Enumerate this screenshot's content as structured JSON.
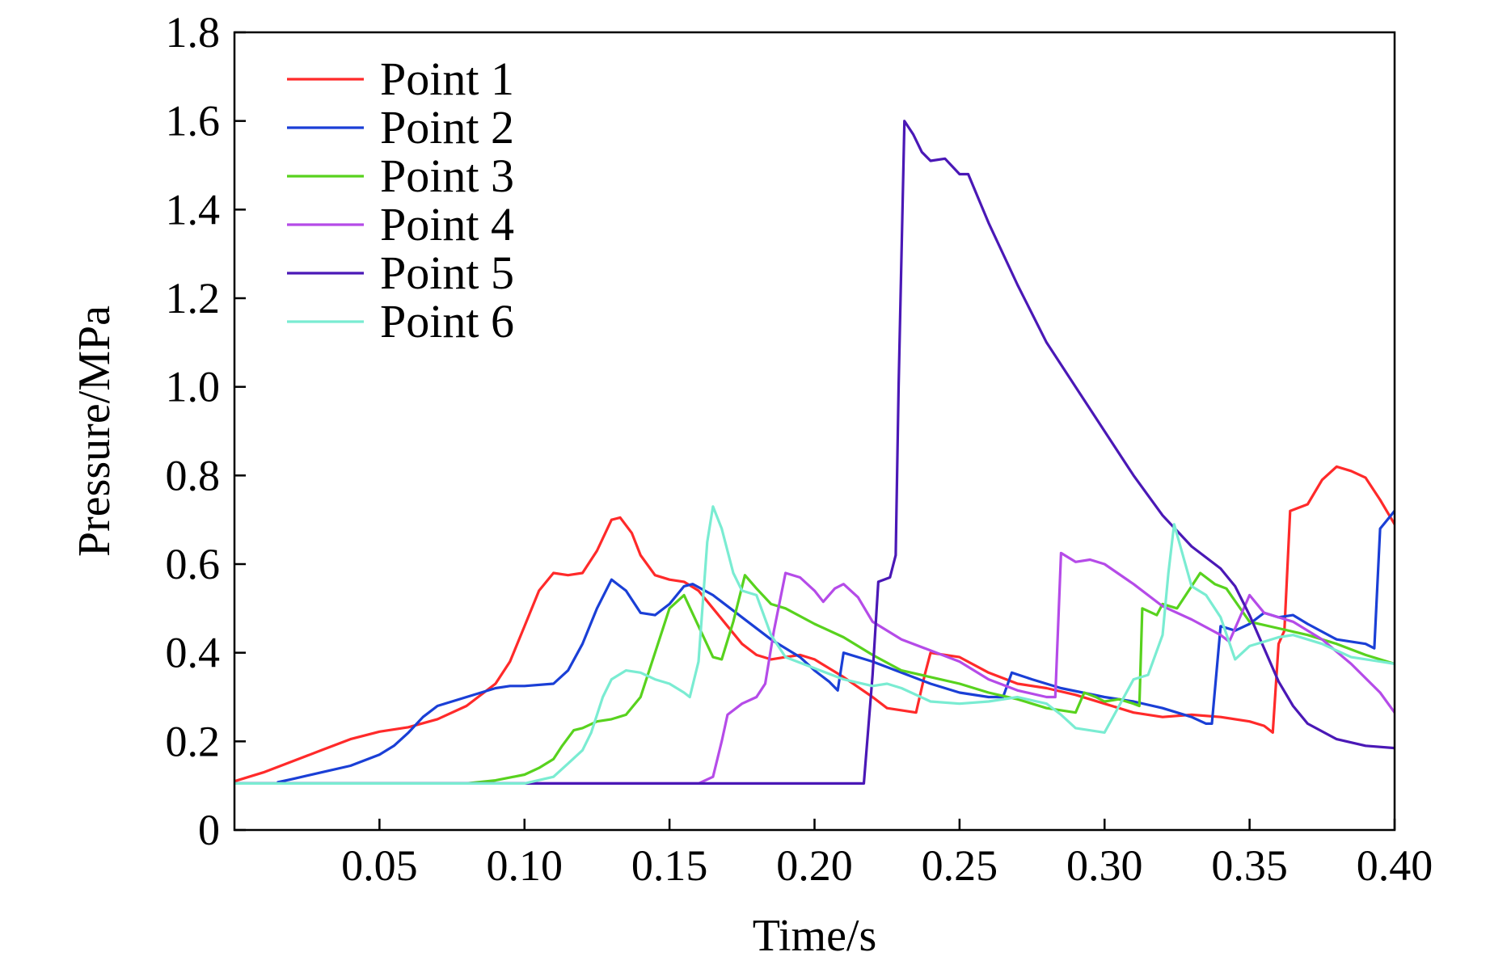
{
  "chart_data": {
    "type": "line",
    "title": "",
    "xlabel": "Time/s",
    "ylabel": "Pressure/MPa",
    "xlim": [
      0,
      0.4
    ],
    "ylim": [
      0,
      1.8
    ],
    "xticks": [
      0.05,
      0.1,
      0.15,
      0.2,
      0.25,
      0.3,
      0.35,
      0.4
    ],
    "xtick_labels": [
      "0.05",
      "0.10",
      "0.15",
      "0.20",
      "0.25",
      "0.30",
      "0.35",
      "0.40"
    ],
    "yticks": [
      0,
      0.2,
      0.4,
      0.6,
      0.8,
      1.0,
      1.2,
      1.4,
      1.6,
      1.8
    ],
    "ytick_labels": [
      "0",
      "0.2",
      "0.4",
      "0.6",
      "0.8",
      "1.0",
      "1.2",
      "1.4",
      "1.6",
      "1.8"
    ],
    "grid": false,
    "legend_position": "top-left",
    "series": [
      {
        "name": "Point 1",
        "color": "#ff2a2a",
        "points": [
          [
            0,
            0.11
          ],
          [
            0.01,
            0.13
          ],
          [
            0.02,
            0.155
          ],
          [
            0.03,
            0.18
          ],
          [
            0.04,
            0.205
          ],
          [
            0.05,
            0.222
          ],
          [
            0.06,
            0.232
          ],
          [
            0.07,
            0.25
          ],
          [
            0.08,
            0.28
          ],
          [
            0.09,
            0.33
          ],
          [
            0.095,
            0.38
          ],
          [
            0.1,
            0.46
          ],
          [
            0.105,
            0.54
          ],
          [
            0.11,
            0.58
          ],
          [
            0.115,
            0.575
          ],
          [
            0.12,
            0.58
          ],
          [
            0.125,
            0.63
          ],
          [
            0.13,
            0.7
          ],
          [
            0.133,
            0.705
          ],
          [
            0.137,
            0.67
          ],
          [
            0.14,
            0.62
          ],
          [
            0.145,
            0.575
          ],
          [
            0.15,
            0.565
          ],
          [
            0.155,
            0.56
          ],
          [
            0.16,
            0.54
          ],
          [
            0.165,
            0.5
          ],
          [
            0.17,
            0.46
          ],
          [
            0.175,
            0.42
          ],
          [
            0.18,
            0.395
          ],
          [
            0.185,
            0.385
          ],
          [
            0.19,
            0.39
          ],
          [
            0.195,
            0.395
          ],
          [
            0.2,
            0.385
          ],
          [
            0.21,
            0.345
          ],
          [
            0.22,
            0.3
          ],
          [
            0.225,
            0.275
          ],
          [
            0.235,
            0.265
          ],
          [
            0.238,
            0.35
          ],
          [
            0.24,
            0.4
          ],
          [
            0.25,
            0.39
          ],
          [
            0.26,
            0.355
          ],
          [
            0.27,
            0.33
          ],
          [
            0.28,
            0.32
          ],
          [
            0.29,
            0.305
          ],
          [
            0.3,
            0.285
          ],
          [
            0.31,
            0.265
          ],
          [
            0.32,
            0.255
          ],
          [
            0.33,
            0.26
          ],
          [
            0.34,
            0.255
          ],
          [
            0.35,
            0.245
          ],
          [
            0.355,
            0.235
          ],
          [
            0.358,
            0.22
          ],
          [
            0.36,
            0.42
          ],
          [
            0.362,
            0.45
          ],
          [
            0.364,
            0.72
          ],
          [
            0.37,
            0.735
          ],
          [
            0.375,
            0.79
          ],
          [
            0.38,
            0.82
          ],
          [
            0.385,
            0.81
          ],
          [
            0.39,
            0.795
          ],
          [
            0.395,
            0.745
          ],
          [
            0.4,
            0.69
          ]
        ]
      },
      {
        "name": "Point 2",
        "color": "#1a3fd6",
        "points": [
          [
            0.015,
            0.108
          ],
          [
            0.02,
            0.115
          ],
          [
            0.03,
            0.13
          ],
          [
            0.04,
            0.145
          ],
          [
            0.05,
            0.17
          ],
          [
            0.055,
            0.19
          ],
          [
            0.06,
            0.22
          ],
          [
            0.065,
            0.255
          ],
          [
            0.07,
            0.28
          ],
          [
            0.08,
            0.3
          ],
          [
            0.09,
            0.32
          ],
          [
            0.095,
            0.325
          ],
          [
            0.1,
            0.325
          ],
          [
            0.11,
            0.33
          ],
          [
            0.115,
            0.36
          ],
          [
            0.12,
            0.42
          ],
          [
            0.125,
            0.5
          ],
          [
            0.13,
            0.565
          ],
          [
            0.135,
            0.54
          ],
          [
            0.14,
            0.49
          ],
          [
            0.145,
            0.485
          ],
          [
            0.15,
            0.51
          ],
          [
            0.155,
            0.55
          ],
          [
            0.158,
            0.555
          ],
          [
            0.165,
            0.53
          ],
          [
            0.175,
            0.48
          ],
          [
            0.185,
            0.43
          ],
          [
            0.195,
            0.39
          ],
          [
            0.2,
            0.36
          ],
          [
            0.205,
            0.335
          ],
          [
            0.208,
            0.315
          ],
          [
            0.21,
            0.4
          ],
          [
            0.215,
            0.39
          ],
          [
            0.22,
            0.38
          ],
          [
            0.23,
            0.355
          ],
          [
            0.24,
            0.33
          ],
          [
            0.25,
            0.31
          ],
          [
            0.26,
            0.3
          ],
          [
            0.265,
            0.3
          ],
          [
            0.268,
            0.355
          ],
          [
            0.275,
            0.34
          ],
          [
            0.285,
            0.32
          ],
          [
            0.3,
            0.3
          ],
          [
            0.31,
            0.29
          ],
          [
            0.32,
            0.275
          ],
          [
            0.33,
            0.255
          ],
          [
            0.335,
            0.24
          ],
          [
            0.337,
            0.24
          ],
          [
            0.34,
            0.46
          ],
          [
            0.345,
            0.45
          ],
          [
            0.35,
            0.465
          ],
          [
            0.355,
            0.49
          ],
          [
            0.36,
            0.48
          ],
          [
            0.365,
            0.485
          ],
          [
            0.37,
            0.465
          ],
          [
            0.38,
            0.43
          ],
          [
            0.39,
            0.42
          ],
          [
            0.393,
            0.41
          ],
          [
            0.395,
            0.68
          ],
          [
            0.4,
            0.72
          ]
        ]
      },
      {
        "name": "Point 3",
        "color": "#58d21e",
        "points": [
          [
            0,
            0.105
          ],
          [
            0.08,
            0.105
          ],
          [
            0.09,
            0.112
          ],
          [
            0.1,
            0.125
          ],
          [
            0.105,
            0.14
          ],
          [
            0.11,
            0.16
          ],
          [
            0.113,
            0.19
          ],
          [
            0.117,
            0.225
          ],
          [
            0.12,
            0.23
          ],
          [
            0.125,
            0.245
          ],
          [
            0.13,
            0.25
          ],
          [
            0.135,
            0.26
          ],
          [
            0.14,
            0.3
          ],
          [
            0.145,
            0.4
          ],
          [
            0.15,
            0.5
          ],
          [
            0.155,
            0.53
          ],
          [
            0.16,
            0.46
          ],
          [
            0.165,
            0.39
          ],
          [
            0.168,
            0.385
          ],
          [
            0.172,
            0.47
          ],
          [
            0.176,
            0.575
          ],
          [
            0.18,
            0.545
          ],
          [
            0.185,
            0.51
          ],
          [
            0.19,
            0.5
          ],
          [
            0.2,
            0.465
          ],
          [
            0.21,
            0.435
          ],
          [
            0.22,
            0.395
          ],
          [
            0.23,
            0.36
          ],
          [
            0.24,
            0.345
          ],
          [
            0.25,
            0.33
          ],
          [
            0.26,
            0.31
          ],
          [
            0.27,
            0.295
          ],
          [
            0.28,
            0.275
          ],
          [
            0.29,
            0.265
          ],
          [
            0.293,
            0.31
          ],
          [
            0.297,
            0.3
          ],
          [
            0.3,
            0.29
          ],
          [
            0.305,
            0.295
          ],
          [
            0.31,
            0.285
          ],
          [
            0.312,
            0.28
          ],
          [
            0.313,
            0.5
          ],
          [
            0.318,
            0.485
          ],
          [
            0.32,
            0.51
          ],
          [
            0.325,
            0.5
          ],
          [
            0.33,
            0.55
          ],
          [
            0.333,
            0.58
          ],
          [
            0.338,
            0.555
          ],
          [
            0.342,
            0.545
          ],
          [
            0.35,
            0.47
          ],
          [
            0.36,
            0.455
          ],
          [
            0.37,
            0.44
          ],
          [
            0.38,
            0.42
          ],
          [
            0.39,
            0.395
          ],
          [
            0.4,
            0.375
          ]
        ]
      },
      {
        "name": "Point 4",
        "color": "#b54be8",
        "points": [
          [
            0,
            0.105
          ],
          [
            0.16,
            0.105
          ],
          [
            0.165,
            0.12
          ],
          [
            0.168,
            0.2
          ],
          [
            0.17,
            0.26
          ],
          [
            0.175,
            0.285
          ],
          [
            0.18,
            0.3
          ],
          [
            0.183,
            0.33
          ],
          [
            0.186,
            0.45
          ],
          [
            0.19,
            0.58
          ],
          [
            0.195,
            0.57
          ],
          [
            0.2,
            0.54
          ],
          [
            0.203,
            0.515
          ],
          [
            0.207,
            0.545
          ],
          [
            0.21,
            0.555
          ],
          [
            0.215,
            0.525
          ],
          [
            0.22,
            0.47
          ],
          [
            0.23,
            0.43
          ],
          [
            0.24,
            0.405
          ],
          [
            0.25,
            0.38
          ],
          [
            0.26,
            0.34
          ],
          [
            0.27,
            0.315
          ],
          [
            0.28,
            0.3
          ],
          [
            0.283,
            0.3
          ],
          [
            0.285,
            0.625
          ],
          [
            0.29,
            0.605
          ],
          [
            0.295,
            0.61
          ],
          [
            0.3,
            0.6
          ],
          [
            0.31,
            0.555
          ],
          [
            0.32,
            0.505
          ],
          [
            0.33,
            0.475
          ],
          [
            0.34,
            0.44
          ],
          [
            0.343,
            0.425
          ],
          [
            0.35,
            0.53
          ],
          [
            0.355,
            0.49
          ],
          [
            0.365,
            0.47
          ],
          [
            0.375,
            0.43
          ],
          [
            0.385,
            0.375
          ],
          [
            0.395,
            0.31
          ],
          [
            0.4,
            0.265
          ]
        ]
      },
      {
        "name": "Point 5",
        "color": "#4a18b6",
        "points": [
          [
            0,
            0.105
          ],
          [
            0.217,
            0.105
          ],
          [
            0.22,
            0.35
          ],
          [
            0.222,
            0.56
          ],
          [
            0.226,
            0.57
          ],
          [
            0.228,
            0.62
          ],
          [
            0.229,
            1.0
          ],
          [
            0.231,
            1.6
          ],
          [
            0.234,
            1.57
          ],
          [
            0.237,
            1.53
          ],
          [
            0.24,
            1.51
          ],
          [
            0.245,
            1.515
          ],
          [
            0.25,
            1.48
          ],
          [
            0.253,
            1.48
          ],
          [
            0.26,
            1.37
          ],
          [
            0.27,
            1.23
          ],
          [
            0.28,
            1.1
          ],
          [
            0.29,
            1.0
          ],
          [
            0.3,
            0.9
          ],
          [
            0.31,
            0.8
          ],
          [
            0.32,
            0.71
          ],
          [
            0.33,
            0.64
          ],
          [
            0.34,
            0.59
          ],
          [
            0.345,
            0.55
          ],
          [
            0.35,
            0.485
          ],
          [
            0.355,
            0.41
          ],
          [
            0.36,
            0.335
          ],
          [
            0.365,
            0.28
          ],
          [
            0.37,
            0.24
          ],
          [
            0.38,
            0.205
          ],
          [
            0.39,
            0.19
          ],
          [
            0.4,
            0.185
          ]
        ]
      },
      {
        "name": "Point 6",
        "color": "#7aecd2",
        "points": [
          [
            0,
            0.105
          ],
          [
            0.1,
            0.105
          ],
          [
            0.11,
            0.12
          ],
          [
            0.115,
            0.15
          ],
          [
            0.12,
            0.18
          ],
          [
            0.123,
            0.22
          ],
          [
            0.127,
            0.3
          ],
          [
            0.13,
            0.34
          ],
          [
            0.135,
            0.36
          ],
          [
            0.14,
            0.355
          ],
          [
            0.145,
            0.34
          ],
          [
            0.15,
            0.33
          ],
          [
            0.155,
            0.31
          ],
          [
            0.157,
            0.3
          ],
          [
            0.16,
            0.38
          ],
          [
            0.163,
            0.65
          ],
          [
            0.165,
            0.73
          ],
          [
            0.168,
            0.68
          ],
          [
            0.172,
            0.58
          ],
          [
            0.175,
            0.54
          ],
          [
            0.18,
            0.53
          ],
          [
            0.185,
            0.44
          ],
          [
            0.19,
            0.39
          ],
          [
            0.2,
            0.365
          ],
          [
            0.21,
            0.34
          ],
          [
            0.22,
            0.325
          ],
          [
            0.225,
            0.33
          ],
          [
            0.23,
            0.32
          ],
          [
            0.24,
            0.29
          ],
          [
            0.25,
            0.285
          ],
          [
            0.26,
            0.29
          ],
          [
            0.27,
            0.3
          ],
          [
            0.28,
            0.285
          ],
          [
            0.285,
            0.26
          ],
          [
            0.29,
            0.23
          ],
          [
            0.3,
            0.22
          ],
          [
            0.305,
            0.28
          ],
          [
            0.31,
            0.34
          ],
          [
            0.315,
            0.35
          ],
          [
            0.32,
            0.44
          ],
          [
            0.322,
            0.58
          ],
          [
            0.324,
            0.69
          ],
          [
            0.327,
            0.62
          ],
          [
            0.33,
            0.55
          ],
          [
            0.335,
            0.53
          ],
          [
            0.34,
            0.48
          ],
          [
            0.345,
            0.385
          ],
          [
            0.35,
            0.415
          ],
          [
            0.355,
            0.425
          ],
          [
            0.36,
            0.435
          ],
          [
            0.365,
            0.44
          ],
          [
            0.375,
            0.42
          ],
          [
            0.385,
            0.39
          ],
          [
            0.395,
            0.38
          ],
          [
            0.4,
            0.375
          ]
        ]
      }
    ]
  }
}
